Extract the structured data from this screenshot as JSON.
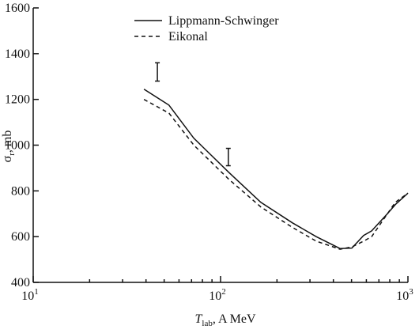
{
  "chart_data": {
    "type": "line",
    "x_label": {
      "symbol": "T",
      "subscript": "lab",
      "unit": ", A MeV"
    },
    "y_label": {
      "symbol": "σ",
      "subscript": "r",
      "unit": ", mb"
    },
    "xlog": true,
    "xlim": [
      10,
      1000
    ],
    "xticks": [
      {
        "value": 10,
        "label": "10",
        "exponent": "1"
      },
      {
        "value": 100,
        "label": "10",
        "exponent": "2"
      },
      {
        "value": 1000,
        "label": "10",
        "exponent": "3"
      }
    ],
    "ylim": [
      400,
      1600
    ],
    "yticks": [
      400,
      600,
      800,
      1000,
      1200,
      1400,
      1600
    ],
    "series": [
      {
        "name": "Lippmann-Schwinger",
        "color": "#111",
        "dash": "none",
        "x": [
          39,
          53,
          72,
          111,
          164,
          242,
          324,
          434,
          502,
          580,
          640,
          777,
          856,
          1000
        ],
        "values": [
          1245,
          1175,
          1030,
          880,
          750,
          660,
          600,
          548,
          550,
          605,
          625,
          700,
          740,
          790
        ]
      },
      {
        "name": "Eikonal",
        "color": "#111",
        "dash": "5,4",
        "x": [
          39,
          53,
          72,
          111,
          164,
          242,
          324,
          434,
          502,
          580,
          640,
          777,
          856,
          1000
        ],
        "values": [
          1200,
          1140,
          1000,
          850,
          730,
          640,
          580,
          545,
          555,
          580,
          600,
          700,
          750,
          790
        ]
      }
    ],
    "measurements": {
      "x": [
        46,
        110
      ],
      "values": [
        1320,
        948
      ],
      "errors": [
        40,
        38
      ]
    }
  }
}
